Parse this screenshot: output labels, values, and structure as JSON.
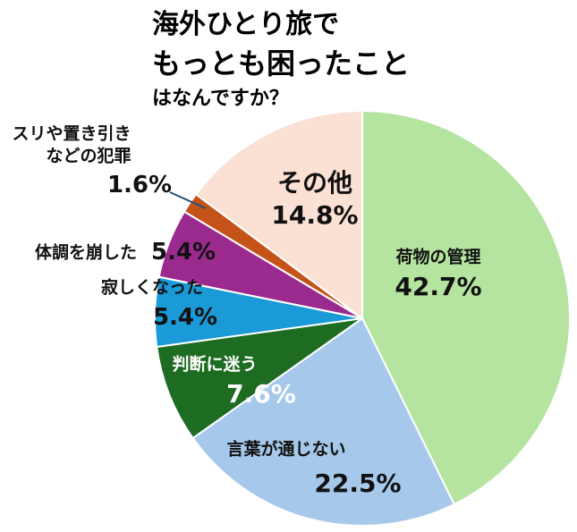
{
  "chart_data": {
    "type": "pie",
    "title": [
      "海外ひとり旅で",
      "もっとも困ったこと",
      "はなんですか？"
    ],
    "categories": [
      "荷物の管理",
      "言葉が通じない",
      "判断に迷う",
      "寂しくなった",
      "体調を崩した",
      "スリや置き引き\nなどの犯罪",
      "その他"
    ],
    "values": [
      42.7,
      22.5,
      7.6,
      5.4,
      5.4,
      1.6,
      14.8
    ],
    "value_labels": [
      "42.7%",
      "22.5%",
      "7.6%",
      "5.4%",
      "5.4%",
      "1.6%",
      "14.8%"
    ],
    "colors": [
      "#b5e3a0",
      "#a6c8ea",
      "#1e6b22",
      "#1a9ad6",
      "#9b2a8f",
      "#c4531a",
      "#fbe0d4"
    ]
  }
}
